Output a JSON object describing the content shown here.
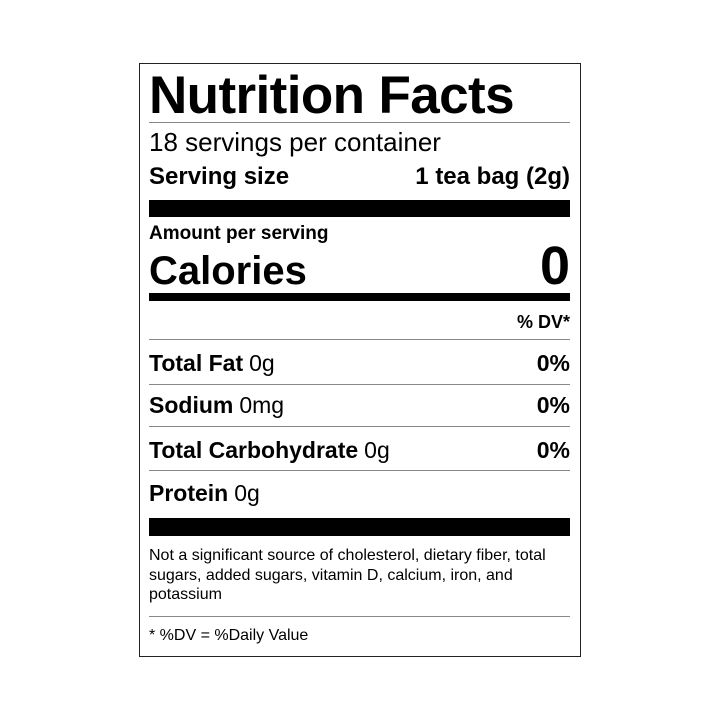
{
  "title": "Nutrition Facts",
  "servings_per_container": "18 servings per container",
  "serving_size": {
    "label": "Serving size",
    "value": "1 tea bag (2g)"
  },
  "amount_per_serving": "Amount per serving",
  "calories": {
    "label": "Calories",
    "value": "0"
  },
  "dv_header": "% DV*",
  "nutrients": [
    {
      "name": "Total Fat",
      "amount": "0g",
      "dv": "0%"
    },
    {
      "name": "Sodium",
      "amount": "0mg",
      "dv": "0%"
    },
    {
      "name": "Total Carbohydrate",
      "amount": "0g",
      "dv": "0%"
    },
    {
      "name": "Protein",
      "amount": "0g",
      "dv": ""
    }
  ],
  "footnote": "Not a significant source of cholesterol, dietary fiber, total sugars, added sugars, vitamin D, calcium, iron, and potassium",
  "dv_definition": "* %DV = %Daily Value"
}
